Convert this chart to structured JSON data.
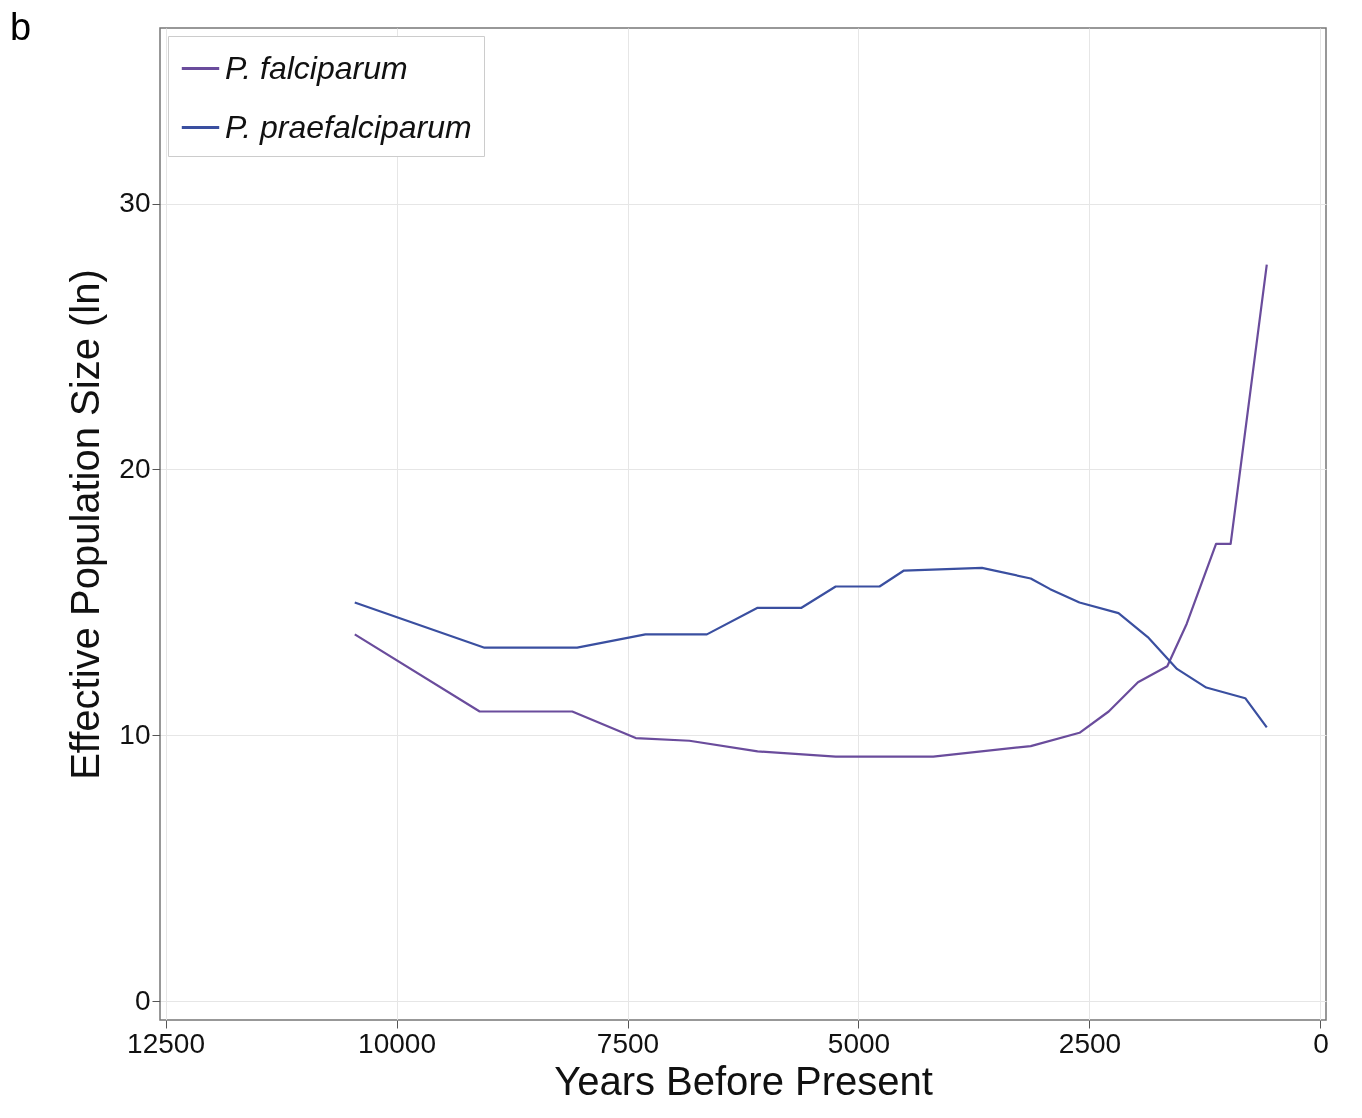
{
  "chart_data": {
    "type": "line",
    "title": "b",
    "xlabel": "Years Before Present",
    "ylabel": "Effective Population Size (ln)",
    "xlim": [
      12560,
      -60
    ],
    "ylim": [
      -0.7,
      36.6
    ],
    "xticks": [
      12500,
      10000,
      7500,
      5000,
      2500,
      0
    ],
    "yticks": [
      0,
      10,
      20,
      30
    ],
    "grid": true,
    "legend": "top left",
    "series": [
      {
        "name": "P. falciparum",
        "color": "#6a4c9c",
        "x": [
          10452,
          9100,
          8098,
          7411,
          6830,
          6092,
          5247,
          4191,
          3136,
          2608,
          2292,
          1975,
          1658,
          1447,
          1130,
          972,
          581
        ],
        "values": [
          13.8,
          10.9,
          10.9,
          9.9,
          9.8,
          9.4,
          9.2,
          9.2,
          9.6,
          10.1,
          10.9,
          12.0,
          12.6,
          14.2,
          17.2,
          17.2,
          27.7
        ]
      },
      {
        "name": "P. praefalciparum",
        "color": "#3a4fa0",
        "x": [
          10452,
          9048,
          8045,
          7306,
          6641,
          6092,
          5617,
          5247,
          4772,
          4508,
          3664,
          3136,
          2925,
          2608,
          2186,
          1869,
          1553,
          1236,
          814,
          581
        ],
        "values": [
          15.0,
          13.3,
          13.3,
          13.8,
          13.8,
          14.8,
          14.8,
          15.6,
          15.6,
          16.2,
          16.3,
          15.9,
          15.5,
          15.0,
          14.6,
          13.7,
          12.5,
          11.8,
          11.4,
          10.3
        ]
      }
    ]
  }
}
